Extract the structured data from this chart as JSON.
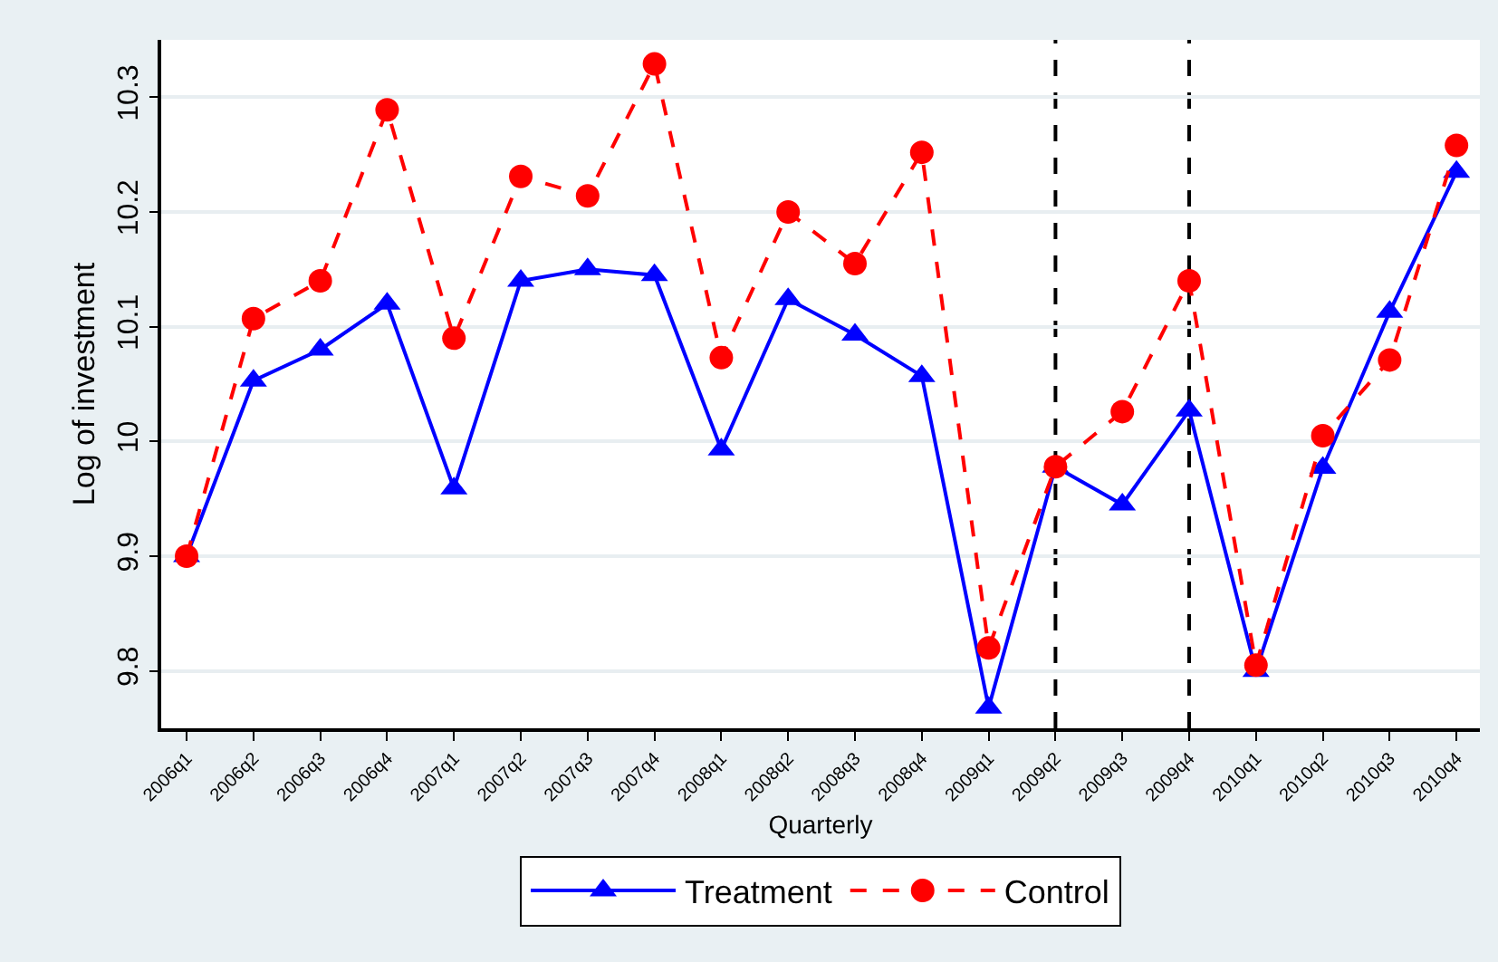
{
  "chart_data": {
    "type": "line",
    "xlabel": "Quarterly",
    "ylabel": "Log of investment",
    "categories": [
      "2006q1",
      "2006q2",
      "2006q3",
      "2006q4",
      "2007q1",
      "2007q2",
      "2007q3",
      "2007q4",
      "2008q1",
      "2008q2",
      "2008q3",
      "2008q4",
      "2009q1",
      "2009q2",
      "2009q3",
      "2009q4",
      "2010q1",
      "2010q2",
      "2010q3",
      "2010q4"
    ],
    "ylim": [
      9.75,
      10.35
    ],
    "yticks": [
      9.8,
      9.9,
      10,
      10.1,
      10.2,
      10.3
    ],
    "grid": "y",
    "legend": "bottom",
    "series": [
      {
        "name": "Treatment",
        "color": "#0000ff",
        "marker": "triangle",
        "line_style": "solid",
        "values": [
          9.9,
          10.053,
          10.08,
          10.12,
          9.959,
          10.14,
          10.15,
          10.145,
          9.993,
          10.124,
          10.093,
          10.057,
          9.768,
          9.978,
          9.945,
          10.027,
          9.8,
          9.977,
          10.113,
          10.235
        ]
      },
      {
        "name": "Control",
        "color": "#ff0000",
        "marker": "circle",
        "line_style": "dashed",
        "values": [
          9.9,
          10.107,
          10.14,
          10.289,
          10.09,
          10.231,
          10.214,
          10.329,
          10.073,
          10.2,
          10.155,
          10.252,
          9.82,
          9.978,
          10.026,
          10.14,
          9.805,
          10.005,
          10.071,
          10.258
        ]
      }
    ],
    "ref_lines": [
      {
        "axis": "x",
        "value": "2009q2",
        "color": "#000000",
        "line_style": "dashed"
      },
      {
        "axis": "x",
        "value": "2009q4",
        "color": "#000000",
        "line_style": "dashed"
      }
    ]
  }
}
